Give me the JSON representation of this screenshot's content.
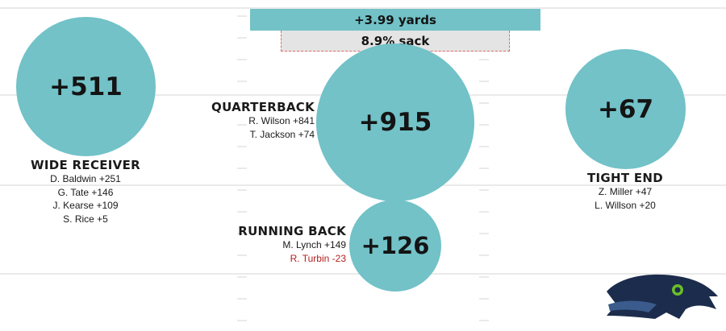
{
  "colors": {
    "bubble": "#72c2c8",
    "negative": "#b51f1f",
    "sack_bar": "#e4e4e4",
    "sack_border": "#e06a6a",
    "field_lines": "#eaeaea",
    "logo_navy": "#1c2c4c",
    "logo_blue": "#3a5b8c",
    "logo_green": "#69be28"
  },
  "passing": {
    "yards_label": "+3.99 yards",
    "sack_label": "8.9% sack"
  },
  "chart_data": {
    "type": "bubble",
    "title": "",
    "series": [
      {
        "position": "WIDE RECEIVER",
        "value_label": "+511",
        "value": 511,
        "players": [
          {
            "name": "D. Baldwin +251",
            "value": 251
          },
          {
            "name": "G. Tate +146",
            "value": 146
          },
          {
            "name": "J. Kearse +109",
            "value": 109
          },
          {
            "name": "S. Rice +5",
            "value": 5
          }
        ]
      },
      {
        "position": "QUARTERBACK",
        "value_label": "+915",
        "value": 915,
        "players": [
          {
            "name": "R. Wilson +841",
            "value": 841
          },
          {
            "name": "T. Jackson +74",
            "value": 74
          }
        ]
      },
      {
        "position": "RUNNING BACK",
        "value_label": "+126",
        "value": 126,
        "players": [
          {
            "name": "M. Lynch +149",
            "value": 149
          },
          {
            "name": "R. Turbin -23",
            "value": -23
          }
        ]
      },
      {
        "position": "TIGHT END",
        "value_label": "+67",
        "value": 67,
        "players": [
          {
            "name": "Z. Miller +47",
            "value": 47
          },
          {
            "name": "L. Willson +20",
            "value": 20
          }
        ]
      }
    ]
  }
}
